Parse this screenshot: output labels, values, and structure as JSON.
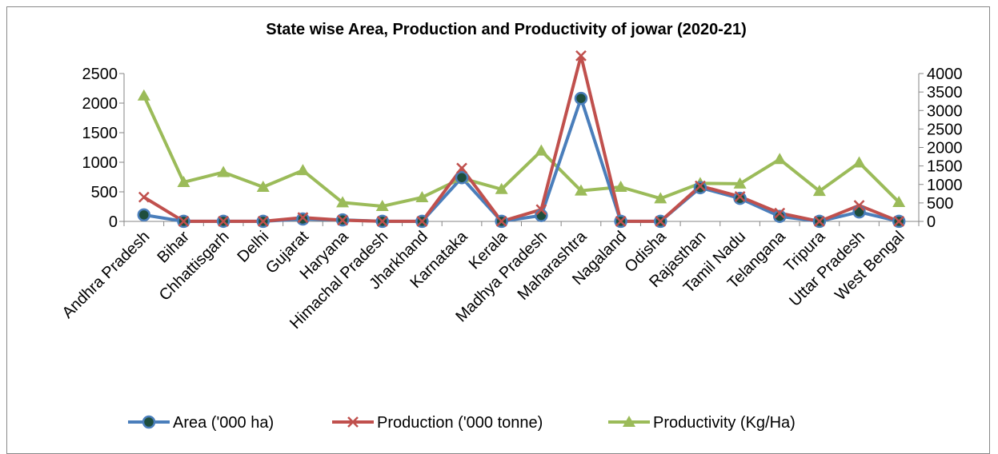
{
  "chart_data": {
    "type": "line",
    "title": "State wise Area, Production and Productivity of jowar (2020-21)",
    "categories": [
      "Andhra Pradesh",
      "Bihar",
      "Chhattisgarh",
      "Delhi",
      "Gujarat",
      "Haryana",
      "Himachal Pradesh",
      "Jharkhand",
      "Karnataka",
      "Kerala",
      "Madhya Pradesh",
      "Maharashtra",
      "Nagaland",
      "Odisha",
      "Rajasthan",
      "Tamil Nadu",
      "Telangana",
      "Tripura",
      "Uttar Pradesh",
      "West Bengal"
    ],
    "y_left": {
      "ylim": [
        0,
        2500
      ],
      "ticks": [
        0,
        500,
        1000,
        1500,
        2000,
        2500
      ]
    },
    "y_right": {
      "ylim": [
        0,
        4000
      ],
      "ticks": [
        0,
        500,
        1000,
        1500,
        2000,
        2500,
        3000,
        3500,
        4000
      ]
    },
    "series": [
      {
        "name": "Area ('000 ha)",
        "axis": "left",
        "color": "#4a7ebb",
        "marker": "circle",
        "values": [
          110,
          1,
          2,
          1,
          40,
          25,
          1,
          1,
          740,
          1,
          100,
          2080,
          1,
          1,
          570,
          390,
          85,
          1,
          160,
          1
        ]
      },
      {
        "name": "Production ('000 tonne)",
        "axis": "left",
        "color": "#c0504d",
        "marker": "x",
        "values": [
          410,
          1,
          2,
          1,
          65,
          20,
          1,
          1,
          900,
          1,
          200,
          2800,
          1,
          1,
          600,
          420,
          140,
          1,
          270,
          1
        ]
      },
      {
        "name": "Productivity (Kg/Ha)",
        "axis": "right",
        "color": "#9bbb59",
        "marker": "triangle",
        "values": [
          3400,
          1060,
          1330,
          930,
          1380,
          510,
          410,
          650,
          1170,
          870,
          1910,
          830,
          930,
          620,
          1030,
          1020,
          1680,
          820,
          1590,
          520
        ]
      }
    ],
    "legend_position": "bottom",
    "grid": false
  }
}
